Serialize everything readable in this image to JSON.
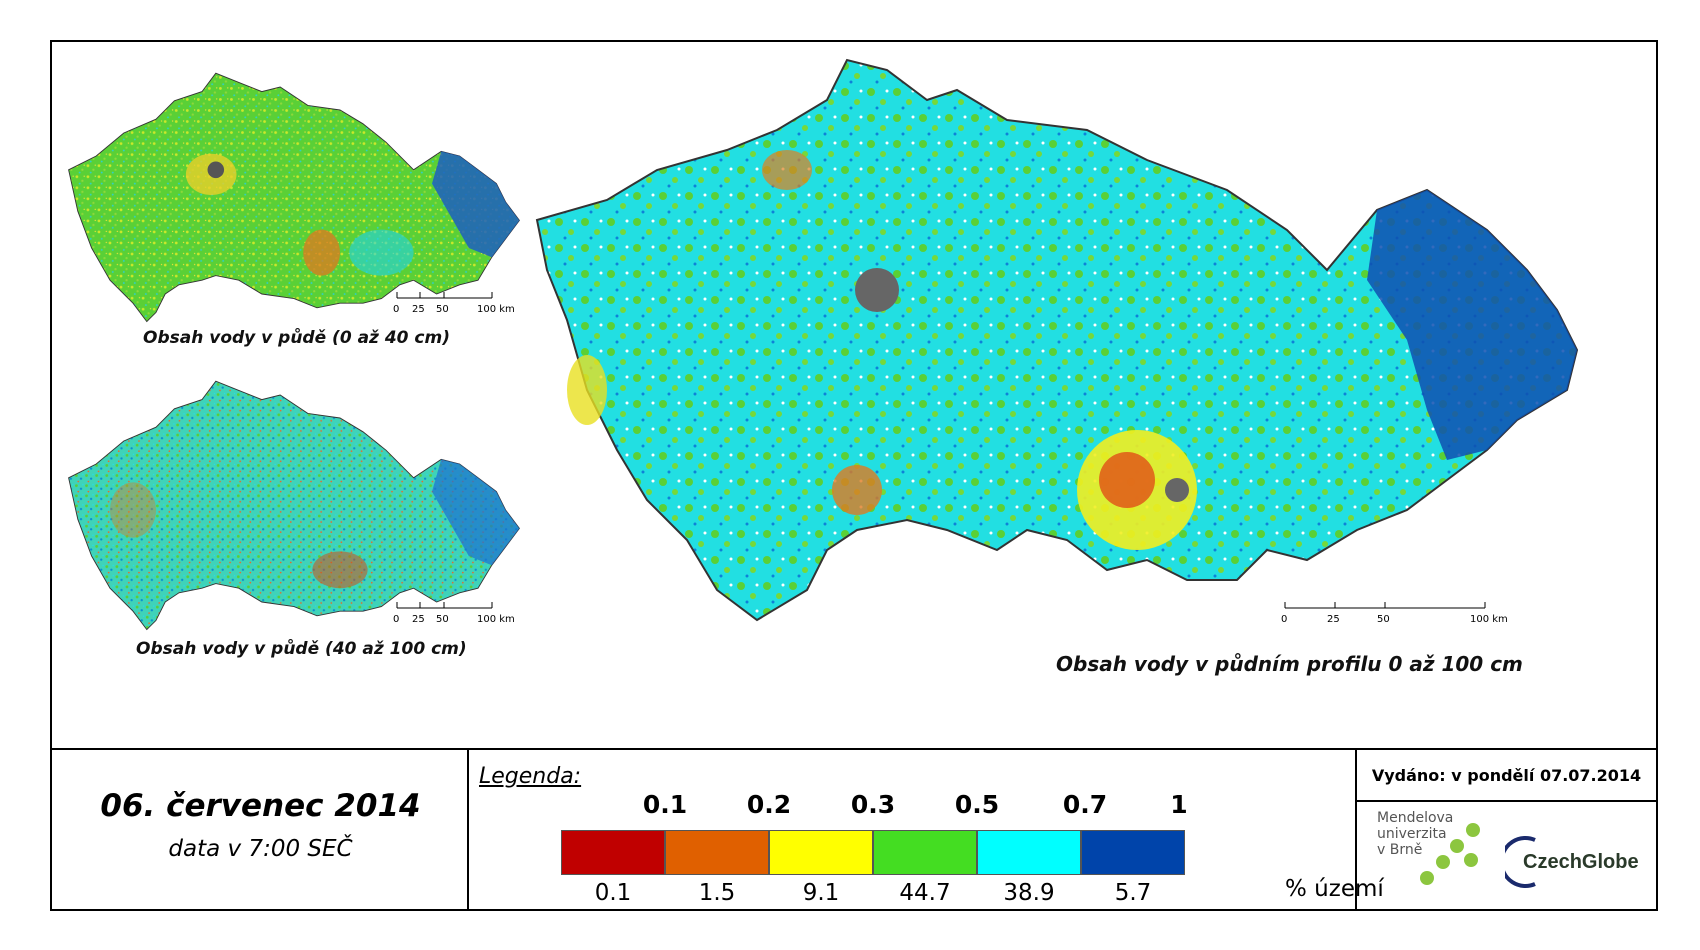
{
  "maps": {
    "top_left_caption": "Obsah vody v půdě (0 až 40 cm)",
    "bottom_left_caption": "Obsah vody v půdě (40 až 100 cm)",
    "main_caption": "Obsah vody v půdním profilu 0 až 100 cm",
    "scale_small": [
      "0",
      "25",
      "50",
      "100 km"
    ],
    "scale_main": [
      "0",
      "25",
      "50",
      "100 km"
    ]
  },
  "date": {
    "title": "06. červenec 2014",
    "subtitle": "data v 7:00 SEČ"
  },
  "legend": {
    "title": "Legenda:",
    "thresholds": [
      "0.1",
      "0.2",
      "0.3",
      "0.5",
      "0.7",
      "1"
    ],
    "classes": [
      {
        "color": "#c00000",
        "percent": "0.1"
      },
      {
        "color": "#e06000",
        "percent": "1.5"
      },
      {
        "color": "#ffff00",
        "percent": "9.1"
      },
      {
        "color": "#44dd22",
        "percent": "44.7"
      },
      {
        "color": "#00ffff",
        "percent": "38.9"
      },
      {
        "color": "#0044aa",
        "percent": "5.7"
      }
    ],
    "unit": "% území"
  },
  "issued": "Vydáno: v pondělí 07.07.2014",
  "logos": {
    "mendel": "Mendelova\nuniverzita\nv Brně",
    "czechglobe": "CzechGlobe"
  }
}
